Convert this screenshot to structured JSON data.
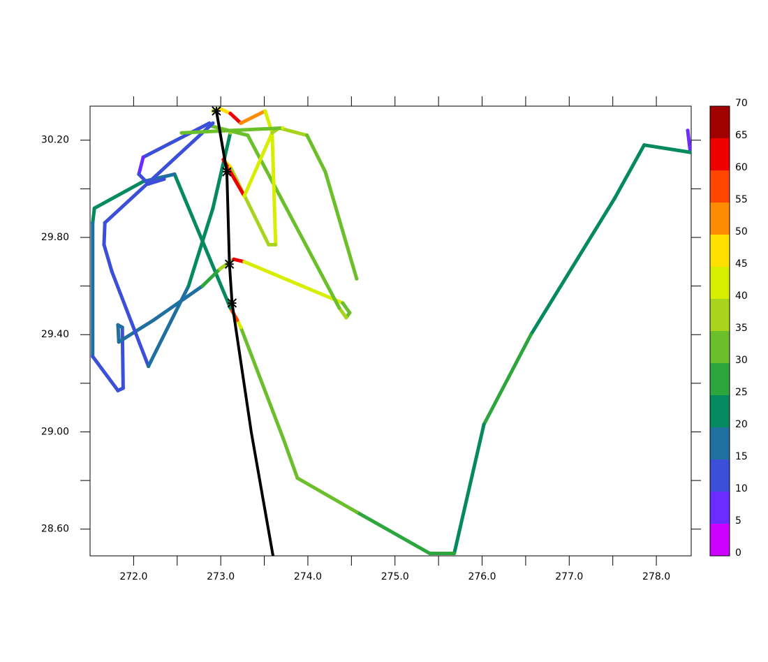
{
  "chart_data": {
    "type": "track",
    "xlim": [
      271.5,
      278.4
    ],
    "ylim": [
      28.49,
      30.34
    ],
    "xticks": [
      {
        "value": 272,
        "label": "272.0"
      },
      {
        "value": 273,
        "label": "273.0"
      },
      {
        "value": 274,
        "label": "274.0"
      },
      {
        "value": 275,
        "label": "275.0"
      },
      {
        "value": 276,
        "label": "276.0"
      },
      {
        "value": 277,
        "label": "277.0"
      },
      {
        "value": 278,
        "label": "278.0"
      }
    ],
    "xminorticks": [
      272.5,
      273.5,
      274.5,
      275.5,
      276.5,
      277.5
    ],
    "yticks": [
      {
        "value": 28.6,
        "label": "28.60"
      },
      {
        "value": 29,
        "label": "29.00"
      },
      {
        "value": 29.4,
        "label": "29.40"
      },
      {
        "value": 29.8,
        "label": "29.80"
      },
      {
        "value": 30.2,
        "label": "30.20"
      }
    ],
    "yminorticks": [
      28.8,
      29.2,
      29.6,
      30.0
    ],
    "tracks": [
      {
        "x": [
          278.36,
          278.39,
          277.86,
          277.52,
          276.56,
          276.02,
          275.68,
          275.4,
          274.56,
          273.88,
          273.72,
          273.23,
          273.19,
          273.11,
          272.47
        ],
        "y": [
          30.24,
          30.15,
          30.18,
          29.96,
          29.4,
          29.03,
          28.5,
          28.5,
          28.67,
          28.81,
          28.97,
          29.43,
          29.46,
          29.51,
          30.06
        ],
        "values": [
          8,
          22,
          22,
          24,
          26,
          24,
          28,
          28,
          32,
          30,
          30,
          40,
          55,
          20,
          18
        ]
      },
      {
        "x": [
          272.47,
          272.11,
          271.55,
          271.53,
          271.53,
          271.82,
          271.88,
          271.87,
          271.82,
          271.83,
          272.23,
          272.79,
          272.99,
          273.15,
          273.27,
          274.4,
          274.48,
          274.44,
          274.36,
          273.31,
          272.87
        ],
        "y": [
          30.06,
          30.03,
          29.92,
          29.86,
          29.31,
          29.17,
          29.18,
          29.43,
          29.44,
          29.37,
          29.46,
          29.6,
          29.67,
          29.71,
          29.7,
          29.53,
          29.49,
          29.47,
          29.51,
          30.22,
          30.26
        ],
        "values": [
          18,
          22,
          24,
          16,
          14,
          12,
          14,
          16,
          16,
          16,
          18,
          27,
          35,
          60,
          40,
          34,
          33,
          35,
          32,
          30,
          30
        ]
      },
      {
        "x": [
          272.87,
          272.11,
          272.06,
          272.17,
          272.35
        ],
        "y": [
          30.27,
          30.13,
          30.06,
          30.02,
          30.04
        ],
        "values": [
          10,
          8,
          10,
          12,
          12
        ]
      },
      {
        "x": [
          272.91,
          271.67,
          271.66,
          271.75,
          272.17,
          272.63,
          272.91,
          273.11
        ],
        "y": [
          30.27,
          29.86,
          29.77,
          29.66,
          29.27,
          29.6,
          29.92,
          30.23
        ],
        "values": [
          14,
          12,
          14,
          14,
          18,
          20,
          22,
          35
        ]
      },
      {
        "x": [
          272.91,
          272.99,
          273.11,
          273.23,
          273.51,
          273.59,
          273.63,
          273.55,
          273.11,
          273.03,
          273.27,
          273.59,
          273.67,
          273.99,
          274.2,
          274.56
        ],
        "y": [
          30.32,
          30.33,
          30.31,
          30.27,
          30.32,
          30.23,
          29.77,
          29.77,
          30.09,
          30.12,
          29.97,
          30.23,
          30.25,
          30.22,
          30.07,
          29.63
        ],
        "values": [
          38,
          45,
          62,
          50,
          44,
          42,
          38,
          38,
          48,
          62,
          40,
          36,
          36,
          33,
          32,
          34
        ]
      },
      {
        "x": [
          272.55,
          273.71
        ],
        "y": [
          30.23,
          30.25
        ],
        "values": [
          30,
          40
        ]
      }
    ],
    "reference": {
      "color": "#000000",
      "x": [
        272.95,
        273.07,
        273.1,
        273.13,
        273.35,
        273.6
      ],
      "y": [
        30.32,
        30.07,
        29.69,
        29.53,
        29.0,
        28.49
      ],
      "markers": {
        "x": [
          272.95,
          273.07,
          273.1,
          273.13
        ],
        "y": [
          30.32,
          30.07,
          29.69,
          29.53
        ]
      }
    },
    "colorbar": {
      "levels": [
        0,
        5,
        10,
        15,
        20,
        25,
        30,
        35,
        40,
        45,
        50,
        55,
        60,
        65,
        70
      ],
      "colors": [
        "#cc00ff",
        "#6a2cff",
        "#3b4fd8",
        "#1f6fa0",
        "#05895f",
        "#2da63d",
        "#6bbf2a",
        "#a8d41e",
        "#d8ee00",
        "#ffe000",
        "#ff8c00",
        "#ff4500",
        "#ee0000",
        "#a00000"
      ]
    }
  }
}
